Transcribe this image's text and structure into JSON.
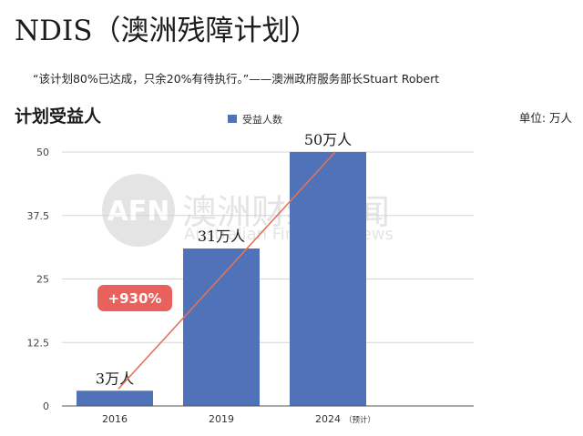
{
  "header": {
    "title": "NDIS（澳洲残障计划）",
    "quote": "“该计划80%已达成，只余20%有待执行。”——澳洲政府服务部长Stuart Robert",
    "section_label": "计划受益人",
    "unit_label": "单位:  万人"
  },
  "watermark": {
    "logo_text": "AFN",
    "name": "澳洲财经见闻",
    "english": "Australian Financial News"
  },
  "annotation": {
    "growth_badge": "+930%",
    "badge_color": "#e8615d",
    "trend_line_color": "#e2735a"
  },
  "colors": {
    "bar": "#4f72b8",
    "grid": "#d6d6d6"
  },
  "chart_data": {
    "type": "bar",
    "categories": [
      "2016",
      "2019",
      "2024"
    ],
    "category_notes": [
      "",
      "",
      "（预计）"
    ],
    "series": [
      {
        "name": "受益人数",
        "values": [
          3,
          31,
          50
        ]
      }
    ],
    "data_labels": [
      "3万人",
      "31万人",
      "50万人"
    ],
    "yticks": [
      "0",
      "12.5",
      "25",
      "37.5",
      "50"
    ],
    "ytick_values": [
      0,
      12.5,
      25,
      37.5,
      50
    ],
    "ylim": [
      0,
      50
    ],
    "grid": true,
    "legend_position": "top"
  }
}
